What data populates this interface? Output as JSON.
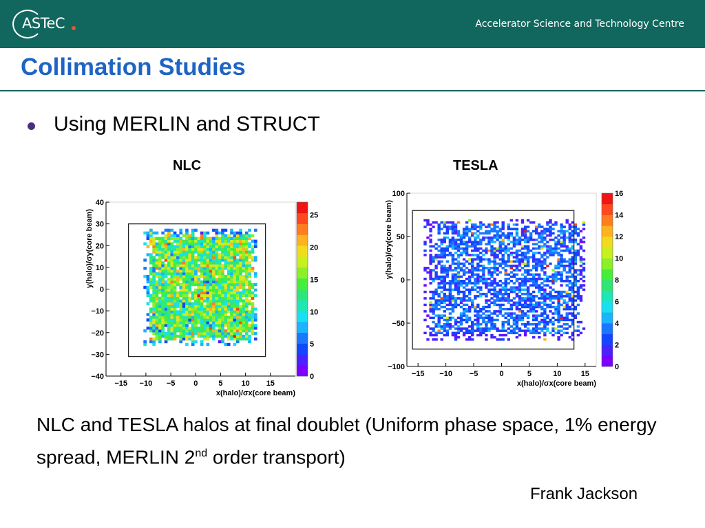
{
  "header": {
    "logo_text": "ASTeC",
    "org_name": "Accelerator Science and Technology Centre",
    "background_color": "#11675e"
  },
  "slide": {
    "title": "Collimation Studies",
    "bullets": [
      "Using MERLIN and STRUCT"
    ],
    "caption_part1": "NLC and TESLA halos at final doublet (Uniform phase space, 1% energy spread, MERLIN 2",
    "caption_superscript": "nd",
    "caption_part2": " order transport)",
    "author": "Frank Jackson"
  },
  "chart_data": [
    {
      "type": "heatmap",
      "panel_label": "NLC",
      "xlabel": "x(halo)/σx(core beam)",
      "ylabel": "y(halo)/σy(core beam)",
      "xlim": [
        -18,
        20
      ],
      "ylim": [
        -40,
        40
      ],
      "xticks": [
        -15,
        -10,
        -5,
        0,
        5,
        10,
        15
      ],
      "yticks": [
        -40,
        -30,
        -20,
        -10,
        0,
        10,
        20,
        30,
        40
      ],
      "zlim": [
        0,
        27
      ],
      "zticks": [
        0,
        5,
        10,
        15,
        20,
        25
      ],
      "frame_x": [
        -13.5,
        14
      ],
      "frame_y": [
        -31,
        30
      ],
      "halo_x": [
        -10.5,
        12
      ],
      "halo_y": [
        -26,
        27
      ],
      "cell_x": 0.6,
      "cell_y": 1.25,
      "distribution": "uniform dense halo, counts mostly 10–20 (cyan/green), scattered 20–25",
      "mean_count": 14
    },
    {
      "type": "heatmap",
      "panel_label": "TESLA",
      "xlabel": "x(halo)/σx(core beam)",
      "ylabel": "y(halo)/σy(core beam)",
      "xlim": [
        -17,
        17
      ],
      "ylim": [
        -100,
        100
      ],
      "xticks": [
        -15,
        -10,
        -5,
        0,
        5,
        10,
        15
      ],
      "yticks": [
        -100,
        -50,
        0,
        50,
        100
      ],
      "zlim": [
        0,
        16
      ],
      "zticks": [
        0,
        2,
        4,
        6,
        8,
        10,
        12,
        14,
        16
      ],
      "frame_x": [
        -16,
        13
      ],
      "frame_y": [
        -80,
        80
      ],
      "halo_x": [
        -14,
        15
      ],
      "halo_y": [
        -70,
        70
      ],
      "cell_x": 0.5,
      "cell_y": 2.5,
      "distribution": "sparse halo, counts mostly 1–6 (blue), scattered up to 10",
      "mean_count": 3
    }
  ]
}
